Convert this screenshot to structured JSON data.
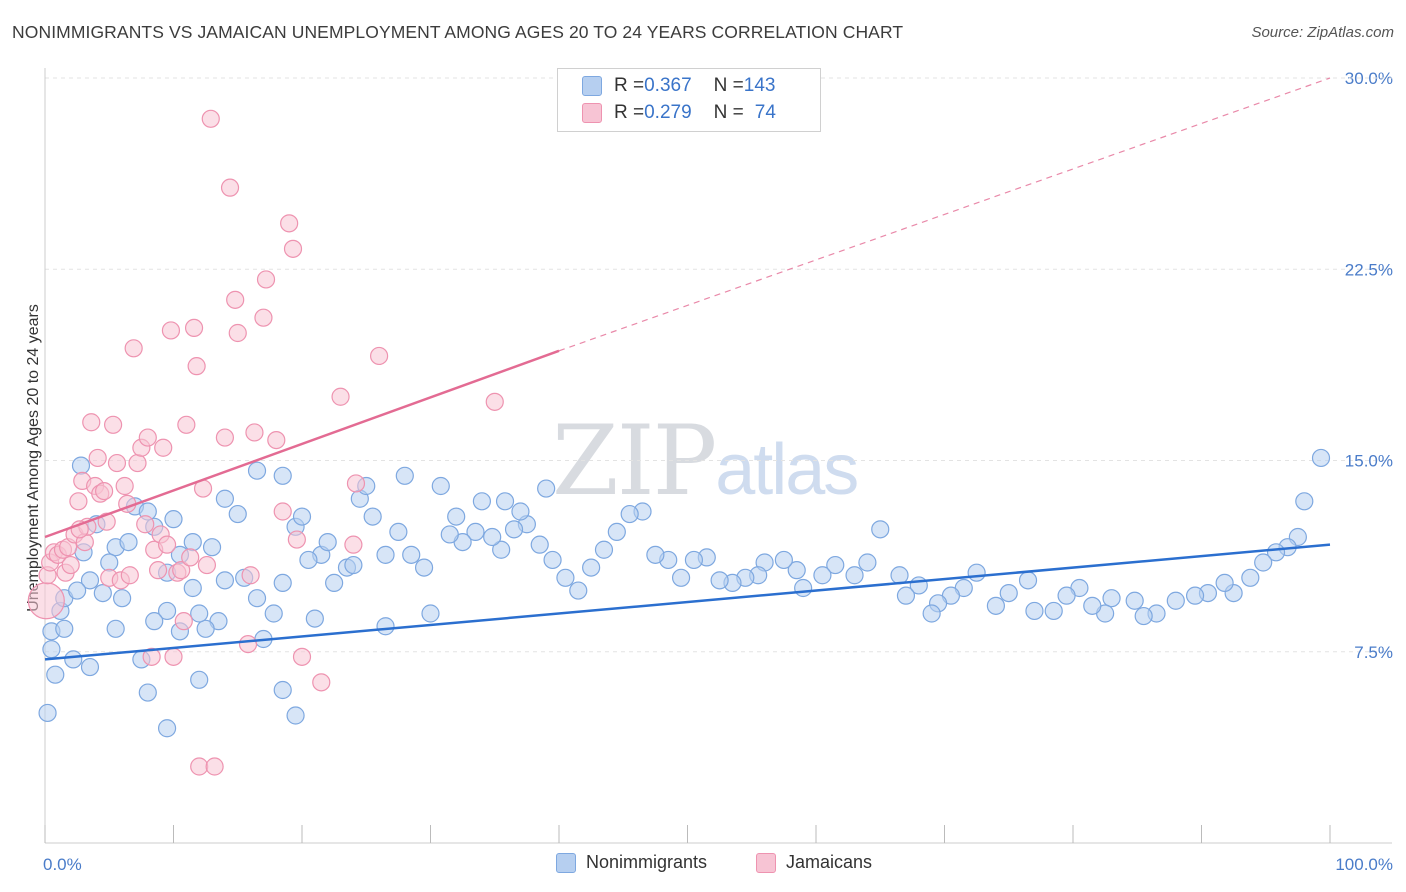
{
  "title": "NONIMMIGRANTS VS JAMAICAN UNEMPLOYMENT AMONG AGES 20 TO 24 YEARS CORRELATION CHART",
  "source": "Source: ZipAtlas.com",
  "watermark": {
    "zip": "ZIP",
    "atlas": "atlas"
  },
  "legend": {
    "nonimmigrants": {
      "r_label": "R = ",
      "r_value": "0.367",
      "n_label": "N = ",
      "n_value": "143"
    },
    "jamaicans": {
      "r_label": "R = ",
      "r_value": "0.279",
      "n_label": "N = ",
      "n_value": "74"
    }
  },
  "colors": {
    "blue_fill": "#b6cff0",
    "blue_stroke": "#7ea8e0",
    "blue_line": "#2b6fcf",
    "pink_fill": "#f7c4d4",
    "pink_stroke": "#ee93b0",
    "pink_line": "#e36b93",
    "grid": "#e3e3e3",
    "axis_text": "#4a7cc9"
  },
  "chart_data": {
    "type": "scatter",
    "title": "NONIMMIGRANTS VS JAMAICAN UNEMPLOYMENT AMONG AGES 20 TO 24 YEARS CORRELATION CHART",
    "xlabel": "",
    "ylabel": "Unemployment Among Ages 20 to 24 years",
    "xlim": [
      0,
      100
    ],
    "ylim": [
      0,
      30
    ],
    "x_tick_labels": [
      "0.0%",
      "100.0%"
    ],
    "y_ticks": [
      7.5,
      15.0,
      22.5,
      30.0
    ],
    "y_tick_labels": [
      "7.5%",
      "15.0%",
      "22.5%",
      "30.0%"
    ],
    "grid": true,
    "legend_position": "top-center",
    "series": [
      {
        "name": "Nonimmigrants",
        "r": 0.367,
        "n": 143,
        "trend": {
          "x": [
            0,
            100
          ],
          "y": [
            7.2,
            11.7
          ]
        },
        "points": [
          [
            99.3,
            15.1
          ],
          [
            98.0,
            13.4
          ],
          [
            97.5,
            12.0
          ],
          [
            96.7,
            11.6
          ],
          [
            95.8,
            11.4
          ],
          [
            94.8,
            11.0
          ],
          [
            93.8,
            10.4
          ],
          [
            92.5,
            9.8
          ],
          [
            91.8,
            10.2
          ],
          [
            90.5,
            9.8
          ],
          [
            89.5,
            9.7
          ],
          [
            88.0,
            9.5
          ],
          [
            86.5,
            9.0
          ],
          [
            85.5,
            8.9
          ],
          [
            84.8,
            9.5
          ],
          [
            83.0,
            9.6
          ],
          [
            82.5,
            9.0
          ],
          [
            81.5,
            9.3
          ],
          [
            80.5,
            10.0
          ],
          [
            79.5,
            9.7
          ],
          [
            78.5,
            9.1
          ],
          [
            77.0,
            9.1
          ],
          [
            76.5,
            10.3
          ],
          [
            75.0,
            9.8
          ],
          [
            74.0,
            9.3
          ],
          [
            72.5,
            10.6
          ],
          [
            71.5,
            10.0
          ],
          [
            70.5,
            9.7
          ],
          [
            69.5,
            9.4
          ],
          [
            69.0,
            9.0
          ],
          [
            68.0,
            10.1
          ],
          [
            67.0,
            9.7
          ],
          [
            66.5,
            10.5
          ],
          [
            65.0,
            12.3
          ],
          [
            64.0,
            11.0
          ],
          [
            63.0,
            10.5
          ],
          [
            61.5,
            10.9
          ],
          [
            60.5,
            10.5
          ],
          [
            59.0,
            10.0
          ],
          [
            58.5,
            10.7
          ],
          [
            57.5,
            11.1
          ],
          [
            56.0,
            11.0
          ],
          [
            55.5,
            10.5
          ],
          [
            54.5,
            10.4
          ],
          [
            53.5,
            10.2
          ],
          [
            52.5,
            10.3
          ],
          [
            51.5,
            11.2
          ],
          [
            50.5,
            11.1
          ],
          [
            49.5,
            10.4
          ],
          [
            48.5,
            11.1
          ],
          [
            47.5,
            11.3
          ],
          [
            46.5,
            13.0
          ],
          [
            45.5,
            12.9
          ],
          [
            44.5,
            12.2
          ],
          [
            43.5,
            11.5
          ],
          [
            42.5,
            10.8
          ],
          [
            41.5,
            9.9
          ],
          [
            40.5,
            10.4
          ],
          [
            39.5,
            11.1
          ],
          [
            38.5,
            11.7
          ],
          [
            37.5,
            12.5
          ],
          [
            36.5,
            12.3
          ],
          [
            35.5,
            11.5
          ],
          [
            34.8,
            12.0
          ],
          [
            33.5,
            12.2
          ],
          [
            32.5,
            11.8
          ],
          [
            31.5,
            12.1
          ],
          [
            30.8,
            14.0
          ],
          [
            30.0,
            9.0
          ],
          [
            29.5,
            10.8
          ],
          [
            28.5,
            11.3
          ],
          [
            27.5,
            12.2
          ],
          [
            26.5,
            11.3
          ],
          [
            25.5,
            12.8
          ],
          [
            24.5,
            13.5
          ],
          [
            23.5,
            10.8
          ],
          [
            22.5,
            10.2
          ],
          [
            21.5,
            11.3
          ],
          [
            20.5,
            11.1
          ],
          [
            19.5,
            12.4
          ],
          [
            18.5,
            10.2
          ],
          [
            17.8,
            9.0
          ],
          [
            17.0,
            8.0
          ],
          [
            16.5,
            9.6
          ],
          [
            15.5,
            10.4
          ],
          [
            15.0,
            12.9
          ],
          [
            14.0,
            10.3
          ],
          [
            13.5,
            8.7
          ],
          [
            12.5,
            8.4
          ],
          [
            11.5,
            10.0
          ],
          [
            10.5,
            11.3
          ],
          [
            9.5,
            9.1
          ],
          [
            8.5,
            8.7
          ],
          [
            7.5,
            7.2
          ],
          [
            6.0,
            9.6
          ],
          [
            5.5,
            8.4
          ],
          [
            4.5,
            9.8
          ],
          [
            3.5,
            6.9
          ],
          [
            2.8,
            14.8
          ],
          [
            2.2,
            7.2
          ],
          [
            1.2,
            9.1
          ],
          [
            0.5,
            7.6
          ],
          [
            39.0,
            13.9
          ],
          [
            37.0,
            13.0
          ],
          [
            35.8,
            13.4
          ],
          [
            34.0,
            13.4
          ],
          [
            32.0,
            12.8
          ],
          [
            28.0,
            14.4
          ],
          [
            25.0,
            14.0
          ],
          [
            22.0,
            11.8
          ],
          [
            20.0,
            12.8
          ],
          [
            18.5,
            14.4
          ],
          [
            16.5,
            14.6
          ],
          [
            14.0,
            13.5
          ],
          [
            11.5,
            11.8
          ],
          [
            9.5,
            10.6
          ],
          [
            8.5,
            12.4
          ],
          [
            7.0,
            13.2
          ],
          [
            5.5,
            11.6
          ],
          [
            4.0,
            12.5
          ],
          [
            3.0,
            11.4
          ],
          [
            1.5,
            9.6
          ],
          [
            0.5,
            8.3
          ],
          [
            26.5,
            8.5
          ],
          [
            24.0,
            10.9
          ],
          [
            13.0,
            11.6
          ],
          [
            10.0,
            12.7
          ],
          [
            8.0,
            13.0
          ],
          [
            6.5,
            11.8
          ],
          [
            5.0,
            11.0
          ],
          [
            3.5,
            10.3
          ],
          [
            2.5,
            9.9
          ],
          [
            1.5,
            8.4
          ],
          [
            0.8,
            6.6
          ],
          [
            0.2,
            5.1
          ],
          [
            19.5,
            5.0
          ],
          [
            18.5,
            6.0
          ],
          [
            21.0,
            8.8
          ],
          [
            12.0,
            9.0
          ],
          [
            10.5,
            8.3
          ],
          [
            12.0,
            6.4
          ],
          [
            9.5,
            4.5
          ],
          [
            8.0,
            5.9
          ]
        ]
      },
      {
        "name": "Jamaicans",
        "r": 0.279,
        "n": 74,
        "trend": {
          "x": [
            0,
            40
          ],
          "y": [
            12.0,
            19.3
          ]
        },
        "trend_extension": {
          "x": [
            40,
            100
          ],
          "y": [
            19.3,
            30.0
          ]
        },
        "points": [
          [
            0.1,
            9.5
          ],
          [
            0.2,
            10.5
          ],
          [
            0.4,
            11.0
          ],
          [
            0.7,
            11.4
          ],
          [
            1.0,
            11.3
          ],
          [
            1.4,
            11.5
          ],
          [
            1.6,
            10.6
          ],
          [
            1.8,
            11.6
          ],
          [
            2.0,
            10.9
          ],
          [
            2.3,
            12.1
          ],
          [
            2.6,
            13.4
          ],
          [
            2.9,
            14.2
          ],
          [
            3.1,
            11.8
          ],
          [
            3.3,
            12.4
          ],
          [
            3.6,
            16.5
          ],
          [
            3.9,
            14.0
          ],
          [
            4.1,
            15.1
          ],
          [
            4.3,
            13.7
          ],
          [
            4.6,
            13.8
          ],
          [
            4.8,
            12.6
          ],
          [
            5.0,
            10.4
          ],
          [
            5.3,
            16.4
          ],
          [
            5.6,
            14.9
          ],
          [
            5.9,
            10.3
          ],
          [
            6.2,
            14.0
          ],
          [
            6.4,
            13.3
          ],
          [
            6.6,
            10.5
          ],
          [
            6.9,
            19.4
          ],
          [
            7.2,
            14.9
          ],
          [
            7.5,
            15.5
          ],
          [
            7.8,
            12.5
          ],
          [
            8.0,
            15.9
          ],
          [
            8.3,
            7.3
          ],
          [
            8.5,
            11.5
          ],
          [
            8.8,
            10.7
          ],
          [
            9.0,
            12.1
          ],
          [
            9.2,
            15.5
          ],
          [
            9.5,
            11.7
          ],
          [
            9.8,
            20.1
          ],
          [
            10.0,
            7.3
          ],
          [
            10.3,
            10.6
          ],
          [
            10.6,
            10.7
          ],
          [
            10.8,
            8.7
          ],
          [
            11.0,
            16.4
          ],
          [
            11.3,
            11.2
          ],
          [
            11.6,
            20.2
          ],
          [
            11.8,
            18.7
          ],
          [
            12.0,
            3.0
          ],
          [
            12.3,
            13.9
          ],
          [
            12.6,
            10.9
          ],
          [
            12.9,
            28.4
          ],
          [
            13.2,
            3.0
          ],
          [
            14.0,
            15.9
          ],
          [
            14.4,
            25.7
          ],
          [
            14.8,
            21.3
          ],
          [
            15.0,
            20.0
          ],
          [
            15.8,
            7.8
          ],
          [
            16.0,
            10.5
          ],
          [
            16.3,
            16.1
          ],
          [
            17.0,
            20.6
          ],
          [
            17.2,
            22.1
          ],
          [
            18.0,
            15.8
          ],
          [
            18.5,
            13.0
          ],
          [
            19.0,
            24.3
          ],
          [
            19.3,
            23.3
          ],
          [
            19.6,
            11.9
          ],
          [
            20.0,
            7.3
          ],
          [
            21.5,
            6.3
          ],
          [
            23.0,
            17.5
          ],
          [
            24.0,
            11.7
          ],
          [
            24.2,
            14.1
          ],
          [
            26.0,
            19.1
          ],
          [
            35.0,
            17.3
          ],
          [
            2.7,
            12.3
          ]
        ]
      }
    ]
  }
}
